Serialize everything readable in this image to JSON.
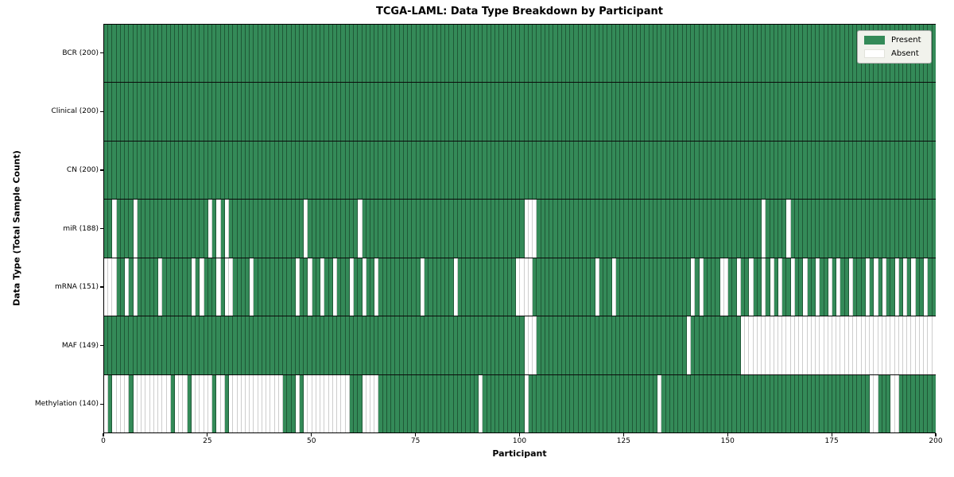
{
  "title": "TCGA-LAML: Data Type Breakdown by Participant",
  "xlabel": "Participant",
  "ylabel": "Data Type (Total Sample Count)",
  "legend": {
    "present_label": "Present",
    "absent_label": "Absent"
  },
  "colors": {
    "present": "#348a58",
    "absent": "#ffffff"
  },
  "chart_data": {
    "type": "heatmap",
    "title": "TCGA-LAML: Data Type Breakdown by Participant",
    "xlabel": "Participant",
    "ylabel": "Data Type (Total Sample Count)",
    "x_range": [
      0,
      200
    ],
    "x_ticks": [
      0,
      25,
      50,
      75,
      100,
      125,
      150,
      175,
      200
    ],
    "n_participants": 200,
    "legend_entries": [
      "Present",
      "Absent"
    ],
    "legend_position": "upper right",
    "grid": false,
    "rows": [
      {
        "label": "BCR (200)",
        "present_count": 200,
        "absent": []
      },
      {
        "label": "Clinical (200)",
        "present_count": 200,
        "absent": []
      },
      {
        "label": "CN (200)",
        "present_count": 200,
        "absent": []
      },
      {
        "label": "miR (188)",
        "present_count": 188,
        "absent": [
          2,
          7,
          25,
          27,
          29,
          48,
          61,
          101,
          102,
          103,
          158,
          164
        ]
      },
      {
        "label": "mRNA (151)",
        "present_count": 151,
        "absent": [
          0,
          1,
          2,
          5,
          7,
          13,
          21,
          23,
          27,
          29,
          30,
          35,
          46,
          49,
          52,
          55,
          59,
          62,
          65,
          76,
          84,
          99,
          100,
          101,
          102,
          118,
          122,
          141,
          143,
          148,
          149,
          152,
          155,
          158,
          160,
          162,
          165,
          168,
          171,
          174,
          176,
          179,
          183,
          185,
          187,
          190,
          192,
          194,
          197
        ]
      },
      {
        "label": "MAF (149)",
        "present_count": 149,
        "absent": [
          101,
          102,
          103,
          140,
          153,
          154,
          155,
          156,
          157,
          158,
          159,
          160,
          161,
          162,
          163,
          164,
          165,
          166,
          167,
          168,
          169,
          170,
          171,
          172,
          173,
          174,
          175,
          176,
          177,
          178,
          179,
          180,
          181,
          182,
          183,
          184,
          185,
          186,
          187,
          188,
          189,
          190,
          191,
          192,
          193,
          194,
          195,
          196,
          197,
          198,
          199
        ]
      },
      {
        "label": "Methylation (140)",
        "present_count": 140,
        "absent": [
          0,
          2,
          3,
          4,
          5,
          7,
          8,
          9,
          10,
          11,
          12,
          13,
          14,
          15,
          17,
          18,
          19,
          21,
          22,
          23,
          24,
          25,
          27,
          28,
          30,
          31,
          32,
          33,
          34,
          35,
          36,
          37,
          38,
          39,
          40,
          41,
          42,
          46,
          48,
          49,
          50,
          51,
          52,
          53,
          54,
          55,
          56,
          57,
          58,
          62,
          63,
          64,
          65,
          90,
          101,
          133,
          184,
          185,
          189,
          190
        ]
      }
    ]
  }
}
